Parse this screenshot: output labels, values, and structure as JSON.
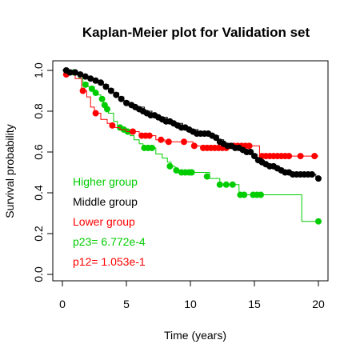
{
  "chart_data": {
    "type": "line",
    "subtype": "kaplan-meier step",
    "title": "Kaplan-Meier plot for Validation set",
    "xlabel": "Time (years)",
    "ylabel": "Survival probability",
    "xlim": [
      0,
      20
    ],
    "ylim": [
      0,
      1.0
    ],
    "x_ticks": [
      0,
      5,
      10,
      15,
      20
    ],
    "y_ticks": [
      "0.0",
      "0.2",
      "0.4",
      "0.6",
      "0.8",
      "1.0"
    ],
    "grid": false,
    "legend_position": "inside-bottom-left",
    "series": [
      {
        "name": "Higher group",
        "color": "#00cd00",
        "steps": [
          [
            0,
            1.0
          ],
          [
            0.6,
            0.99
          ],
          [
            1.0,
            0.98
          ],
          [
            1.3,
            0.96
          ],
          [
            1.6,
            0.94
          ],
          [
            2.0,
            0.92
          ],
          [
            2.5,
            0.9
          ],
          [
            2.7,
            0.88
          ],
          [
            3.0,
            0.85
          ],
          [
            3.2,
            0.83
          ],
          [
            3.4,
            0.81
          ],
          [
            3.6,
            0.79
          ],
          [
            4.0,
            0.75
          ],
          [
            4.3,
            0.73
          ],
          [
            4.6,
            0.71
          ],
          [
            5.0,
            0.69
          ],
          [
            5.3,
            0.68
          ],
          [
            5.6,
            0.66
          ],
          [
            6.0,
            0.64
          ],
          [
            6.3,
            0.62
          ],
          [
            6.8,
            0.62
          ],
          [
            7.3,
            0.59
          ],
          [
            7.8,
            0.57
          ],
          [
            8.2,
            0.55
          ],
          [
            8.5,
            0.53
          ],
          [
            8.8,
            0.51
          ],
          [
            9.2,
            0.5
          ],
          [
            10.0,
            0.5
          ],
          [
            11.5,
            0.47
          ],
          [
            12.3,
            0.44
          ],
          [
            13.0,
            0.44
          ],
          [
            13.8,
            0.39
          ],
          [
            15.0,
            0.39
          ],
          [
            16.0,
            0.39
          ],
          [
            18.7,
            0.26
          ],
          [
            20.0,
            0.26
          ]
        ],
        "censor_points": [
          [
            0.9,
            0.99
          ],
          [
            1.8,
            0.93
          ],
          [
            2.3,
            0.91
          ],
          [
            2.6,
            0.89
          ],
          [
            3.1,
            0.86
          ],
          [
            3.3,
            0.83
          ],
          [
            3.5,
            0.81
          ],
          [
            4.5,
            0.72
          ],
          [
            4.8,
            0.71
          ],
          [
            5.1,
            0.7
          ],
          [
            6.4,
            0.62
          ],
          [
            6.7,
            0.62
          ],
          [
            7.0,
            0.62
          ],
          [
            8.4,
            0.53
          ],
          [
            8.9,
            0.51
          ],
          [
            9.3,
            0.5
          ],
          [
            9.6,
            0.5
          ],
          [
            9.9,
            0.5
          ],
          [
            10.1,
            0.5
          ],
          [
            11.3,
            0.48
          ],
          [
            12.3,
            0.44
          ],
          [
            12.8,
            0.44
          ],
          [
            13.3,
            0.44
          ],
          [
            13.9,
            0.39
          ],
          [
            14.2,
            0.39
          ],
          [
            14.9,
            0.39
          ],
          [
            15.2,
            0.39
          ],
          [
            15.5,
            0.39
          ],
          [
            20.0,
            0.26
          ]
        ]
      },
      {
        "name": "Middle group",
        "color": "#000000",
        "steps": [
          [
            0,
            1.0
          ],
          [
            0.8,
            0.99
          ],
          [
            1.2,
            0.98
          ],
          [
            1.6,
            0.97
          ],
          [
            2.0,
            0.96
          ],
          [
            2.4,
            0.95
          ],
          [
            2.8,
            0.94
          ],
          [
            3.2,
            0.93
          ],
          [
            3.6,
            0.91
          ],
          [
            4.0,
            0.89
          ],
          [
            4.4,
            0.87
          ],
          [
            4.8,
            0.85
          ],
          [
            5.2,
            0.83
          ],
          [
            5.8,
            0.82
          ],
          [
            6.4,
            0.8
          ],
          [
            7.0,
            0.78
          ],
          [
            7.6,
            0.77
          ],
          [
            8.2,
            0.75
          ],
          [
            8.8,
            0.74
          ],
          [
            9.4,
            0.72
          ],
          [
            10.0,
            0.71
          ],
          [
            10.6,
            0.69
          ],
          [
            11.2,
            0.69
          ],
          [
            11.8,
            0.68
          ],
          [
            12.2,
            0.66
          ],
          [
            12.6,
            0.64
          ],
          [
            13.0,
            0.63
          ],
          [
            13.6,
            0.62
          ],
          [
            14.2,
            0.61
          ],
          [
            14.8,
            0.59
          ],
          [
            15.2,
            0.57
          ],
          [
            15.6,
            0.55
          ],
          [
            16.0,
            0.54
          ],
          [
            16.4,
            0.53
          ],
          [
            16.8,
            0.52
          ],
          [
            17.2,
            0.51
          ],
          [
            17.6,
            0.5
          ],
          [
            18.0,
            0.49
          ],
          [
            19.8,
            0.47
          ],
          [
            20.0,
            0.47
          ]
        ],
        "censor_points": [
          [
            0.3,
            1.0
          ],
          [
            0.6,
            0.99
          ],
          [
            1.0,
            0.99
          ],
          [
            1.4,
            0.98
          ],
          [
            1.8,
            0.97
          ],
          [
            2.2,
            0.96
          ],
          [
            2.6,
            0.95
          ],
          [
            3.0,
            0.94
          ],
          [
            3.4,
            0.92
          ],
          [
            3.8,
            0.9
          ],
          [
            4.2,
            0.88
          ],
          [
            4.6,
            0.86
          ],
          [
            5.0,
            0.84
          ],
          [
            5.4,
            0.83
          ],
          [
            5.7,
            0.82
          ],
          [
            6.0,
            0.81
          ],
          [
            6.3,
            0.8
          ],
          [
            6.6,
            0.79
          ],
          [
            6.9,
            0.78
          ],
          [
            7.2,
            0.78
          ],
          [
            7.5,
            0.77
          ],
          [
            7.8,
            0.76
          ],
          [
            8.1,
            0.75
          ],
          [
            8.4,
            0.75
          ],
          [
            8.7,
            0.74
          ],
          [
            9.0,
            0.73
          ],
          [
            9.3,
            0.72
          ],
          [
            9.6,
            0.72
          ],
          [
            9.9,
            0.71
          ],
          [
            10.2,
            0.7
          ],
          [
            10.5,
            0.69
          ],
          [
            10.8,
            0.69
          ],
          [
            11.1,
            0.69
          ],
          [
            11.4,
            0.69
          ],
          [
            11.7,
            0.68
          ],
          [
            12.0,
            0.67
          ],
          [
            12.3,
            0.65
          ],
          [
            12.6,
            0.64
          ],
          [
            12.9,
            0.63
          ],
          [
            13.2,
            0.63
          ],
          [
            13.5,
            0.62
          ],
          [
            13.8,
            0.62
          ],
          [
            14.1,
            0.61
          ],
          [
            14.4,
            0.6
          ],
          [
            14.7,
            0.6
          ],
          [
            15.0,
            0.58
          ],
          [
            15.3,
            0.56
          ],
          [
            15.6,
            0.55
          ],
          [
            15.9,
            0.54
          ],
          [
            16.2,
            0.53
          ],
          [
            16.5,
            0.53
          ],
          [
            16.8,
            0.52
          ],
          [
            17.1,
            0.51
          ],
          [
            17.4,
            0.5
          ],
          [
            17.7,
            0.5
          ],
          [
            18.0,
            0.49
          ],
          [
            18.3,
            0.49
          ],
          [
            18.6,
            0.49
          ],
          [
            18.9,
            0.49
          ],
          [
            19.2,
            0.49
          ],
          [
            19.5,
            0.49
          ],
          [
            20.0,
            0.47
          ]
        ]
      },
      {
        "name": "Lower group",
        "color": "#ff0000",
        "steps": [
          [
            0,
            1.0
          ],
          [
            0.4,
            0.98
          ],
          [
            1.0,
            0.96
          ],
          [
            1.5,
            0.9
          ],
          [
            1.9,
            0.87
          ],
          [
            2.2,
            0.82
          ],
          [
            2.5,
            0.79
          ],
          [
            3.0,
            0.76
          ],
          [
            3.5,
            0.74
          ],
          [
            4.0,
            0.72
          ],
          [
            4.5,
            0.71
          ],
          [
            5.0,
            0.7
          ],
          [
            5.8,
            0.7
          ],
          [
            6.0,
            0.68
          ],
          [
            7.0,
            0.68
          ],
          [
            7.3,
            0.66
          ],
          [
            8.0,
            0.65
          ],
          [
            10.0,
            0.65
          ],
          [
            10.2,
            0.63
          ],
          [
            11.0,
            0.62
          ],
          [
            13.0,
            0.62
          ],
          [
            13.3,
            0.63
          ],
          [
            15.2,
            0.63
          ],
          [
            15.4,
            0.58
          ],
          [
            20.0,
            0.58
          ]
        ],
        "censor_points": [
          [
            0.3,
            0.98
          ],
          [
            1.6,
            0.9
          ],
          [
            2.6,
            0.79
          ],
          [
            3.9,
            0.73
          ],
          [
            5.5,
            0.7
          ],
          [
            6.2,
            0.68
          ],
          [
            6.5,
            0.68
          ],
          [
            6.8,
            0.68
          ],
          [
            7.7,
            0.66
          ],
          [
            8.3,
            0.65
          ],
          [
            9.5,
            0.65
          ],
          [
            10.3,
            0.63
          ],
          [
            11.0,
            0.62
          ],
          [
            11.3,
            0.62
          ],
          [
            11.6,
            0.62
          ],
          [
            11.9,
            0.62
          ],
          [
            12.2,
            0.62
          ],
          [
            12.5,
            0.62
          ],
          [
            12.8,
            0.62
          ],
          [
            13.1,
            0.63
          ],
          [
            13.4,
            0.63
          ],
          [
            13.7,
            0.63
          ],
          [
            14.0,
            0.63
          ],
          [
            14.3,
            0.63
          ],
          [
            14.6,
            0.63
          ],
          [
            15.6,
            0.58
          ],
          [
            15.9,
            0.58
          ],
          [
            16.2,
            0.58
          ],
          [
            16.5,
            0.58
          ],
          [
            16.8,
            0.58
          ],
          [
            17.1,
            0.58
          ],
          [
            17.4,
            0.58
          ],
          [
            17.7,
            0.58
          ],
          [
            18.6,
            0.58
          ],
          [
            19.7,
            0.58
          ]
        ]
      }
    ],
    "annotations": [
      {
        "text": "p23= 6.772e-4",
        "color": "#00cd00"
      },
      {
        "text": "p12= 1.053e-1",
        "color": "#ff0000"
      }
    ]
  }
}
